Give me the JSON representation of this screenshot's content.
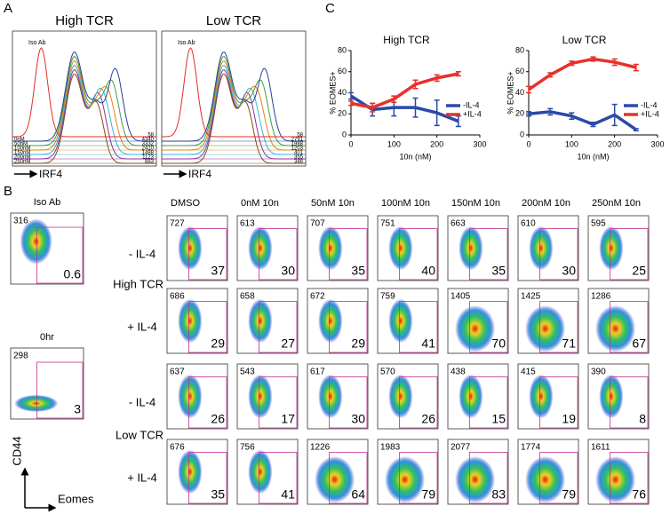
{
  "panel_a": {
    "label": "A",
    "colors": [
      "#e03020",
      "#2c3e9a",
      "#3aa040",
      "#f08010",
      "#30b8d8",
      "#9030a0",
      "#8b4513"
    ],
    "panels": [
      {
        "title": "High TCR",
        "iso_label": "Iso Ab",
        "iso_value": 58,
        "conditions": [
          "0nM",
          "50nM",
          "100nM",
          "150nM",
          "200nM",
          "250nM"
        ],
        "values": [
          4340,
          3332,
          2410,
          1488,
          1123,
          883
        ],
        "x_label": "IRF4"
      },
      {
        "title": "Low TCR",
        "iso_label": "Iso Ab",
        "iso_value": 58,
        "values": [
          2791,
          1988,
          1203,
          401,
          355,
          346
        ],
        "x_label": "IRF4"
      }
    ]
  },
  "panel_b": {
    "label": "B",
    "controls": [
      {
        "title": "Iso Ab",
        "count": 316,
        "percent": 0.6
      },
      {
        "title": "0hr",
        "count": 298,
        "percent": 3
      }
    ],
    "columns": [
      "DMSO",
      "0nM 10n",
      "50nM 10n",
      "100nM 10n",
      "150nM 10n",
      "200nM 10n",
      "250nM 10n"
    ],
    "groups": [
      "High TCR",
      "Low TCR"
    ],
    "rows": [
      {
        "label": "- IL-4",
        "counts": [
          727,
          613,
          707,
          751,
          663,
          610,
          595
        ],
        "percents": [
          37,
          30,
          35,
          40,
          35,
          30,
          25
        ]
      },
      {
        "label": "+ IL-4",
        "counts": [
          686,
          658,
          672,
          759,
          1405,
          1425,
          1286
        ],
        "percents": [
          29,
          27,
          29,
          41,
          70,
          71,
          67
        ]
      },
      {
        "label": "- IL-4",
        "counts": [
          637,
          543,
          617,
          570,
          438,
          415,
          390
        ],
        "percents": [
          26,
          17,
          30,
          26,
          15,
          19,
          8
        ]
      },
      {
        "label": "+ IL-4",
        "counts": [
          676,
          756,
          1226,
          1983,
          2077,
          1774,
          1611
        ],
        "percents": [
          35,
          41,
          64,
          79,
          83,
          79,
          76
        ]
      }
    ],
    "y_label": "CD44",
    "x_label": "Eomes"
  },
  "panel_c_label": "C",
  "chart_data": [
    {
      "type": "line",
      "title": "High TCR",
      "x_label": "10n (nM)",
      "y_label": "% EOMES+",
      "x": [
        0,
        50,
        100,
        150,
        200,
        250
      ],
      "xlim": [
        0,
        300
      ],
      "xticks": [
        0,
        100,
        200,
        300
      ],
      "ylim": [
        0,
        80
      ],
      "yticks": [
        0,
        20,
        40,
        60,
        80
      ],
      "series": [
        {
          "name": "-IL-4",
          "color": "#2a4aa8",
          "values": [
            37,
            24,
            26,
            26,
            21,
            13
          ],
          "errors": [
            3,
            6,
            8,
            9,
            12,
            5
          ]
        },
        {
          "name": "+IL-4",
          "color": "#e8302a",
          "values": [
            30,
            26,
            34,
            48,
            54,
            58
          ],
          "errors": [
            2,
            4,
            3,
            4,
            3,
            2
          ]
        }
      ]
    },
    {
      "type": "line",
      "title": "Low TCR",
      "x_label": "10n (nM)",
      "y_label": "% EOMES+",
      "x": [
        0,
        50,
        100,
        150,
        200,
        250
      ],
      "xlim": [
        0,
        300
      ],
      "xticks": [
        0,
        100,
        200,
        300
      ],
      "ylim": [
        0,
        80
      ],
      "yticks": [
        0,
        20,
        40,
        60,
        80
      ],
      "series": [
        {
          "name": "-IL-4",
          "color": "#2a4aa8",
          "values": [
            20,
            22,
            18,
            10,
            19,
            5
          ],
          "errors": [
            2,
            3,
            3,
            2,
            10,
            1
          ]
        },
        {
          "name": "+IL-4",
          "color": "#e8302a",
          "values": [
            43,
            57,
            68,
            72,
            69,
            64
          ],
          "errors": [
            3,
            2,
            2,
            2,
            3,
            3
          ]
        }
      ]
    }
  ]
}
